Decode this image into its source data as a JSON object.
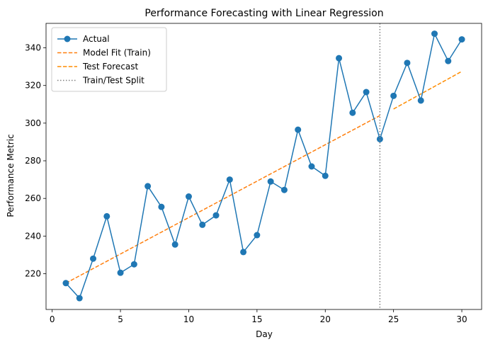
{
  "chart_data": {
    "type": "line",
    "title": "Performance Forecasting with Linear Regression",
    "xlabel": "Day",
    "ylabel": "Performance Metric",
    "xlim": [
      -0.45,
      31.45
    ],
    "ylim": [
      201.0,
      353.0
    ],
    "xticks": [
      0,
      5,
      10,
      15,
      20,
      25,
      30
    ],
    "yticks": [
      220,
      240,
      260,
      280,
      300,
      320,
      340
    ],
    "grid": false,
    "legend_position": "top-left",
    "split_x": 24,
    "series": [
      {
        "name": "Actual",
        "style": "solid-marker",
        "color": "#1f77b4",
        "x": [
          1,
          2,
          3,
          4,
          5,
          6,
          7,
          8,
          9,
          10,
          11,
          12,
          13,
          14,
          15,
          16,
          17,
          18,
          19,
          20,
          21,
          22,
          23,
          24,
          25,
          26,
          27,
          28,
          29,
          30
        ],
        "y": [
          215,
          207,
          228,
          250.5,
          220.5,
          225,
          266.5,
          255.5,
          235.5,
          261,
          246,
          251,
          270,
          231.5,
          240.5,
          269,
          264.5,
          296.5,
          277,
          272,
          334.5,
          305.5,
          316.5,
          291.5,
          314.5,
          332,
          312,
          347.5,
          333,
          344.5
        ]
      },
      {
        "name": "Model Fit (Train)",
        "style": "dashed",
        "color": "#ff7f0e",
        "x": [
          1,
          24
        ],
        "y": [
          215,
          304
        ]
      },
      {
        "name": "Test Forecast",
        "style": "dashed",
        "color": "#ff8c00",
        "x": [
          25,
          30
        ],
        "y": [
          307.5,
          327.5
        ]
      }
    ],
    "split_label": "Train/Test Split",
    "split_color": "#808080"
  }
}
